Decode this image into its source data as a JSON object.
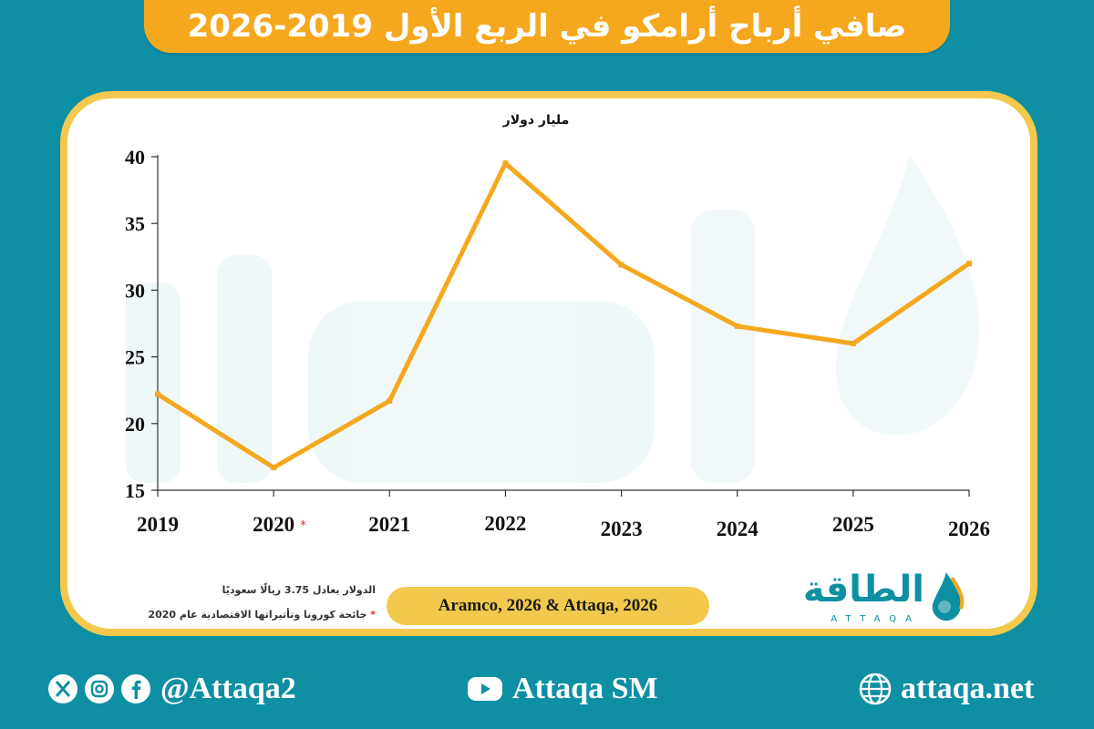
{
  "title": "صافي أرباح أرامكو في الربع الأول 2019-2026",
  "chart_data": {
    "type": "line",
    "unit_label": "مليار دولار",
    "categories": [
      "2019",
      "2020",
      "2021",
      "2022",
      "2023",
      "2024",
      "2025",
      "2026"
    ],
    "category_marks": [
      "",
      "*",
      "",
      "",
      "",
      "",
      "",
      ""
    ],
    "series": [
      {
        "values": [
          22.2,
          16.7,
          21.7,
          39.5,
          31.9,
          27.3,
          26.0,
          32.0
        ]
      }
    ],
    "ylim": [
      15,
      40
    ],
    "yticks": [
      "15",
      "20",
      "25",
      "30",
      "35",
      "40"
    ],
    "grid": false,
    "line_color": "#f5a81e"
  },
  "footnotes": {
    "exchange": "الدولار يعادل 3.75 ريالًا سعوديًا",
    "covid_mark": "*",
    "covid": "جائحة كورونا وتأثيراتها الاقتصادية عام 2020"
  },
  "source": "Aramco, 2026 & Attaqa, 2026",
  "logo": {
    "arabic": "الطاقة",
    "latin": "ATTAQA"
  },
  "social": {
    "handle": "@Attaqa2",
    "youtube": "Attaqa SM",
    "website": "attaqa.net"
  },
  "colors": {
    "background": "#0e8fa3",
    "accent": "#f5a81e",
    "frame": "#f2c94c"
  }
}
